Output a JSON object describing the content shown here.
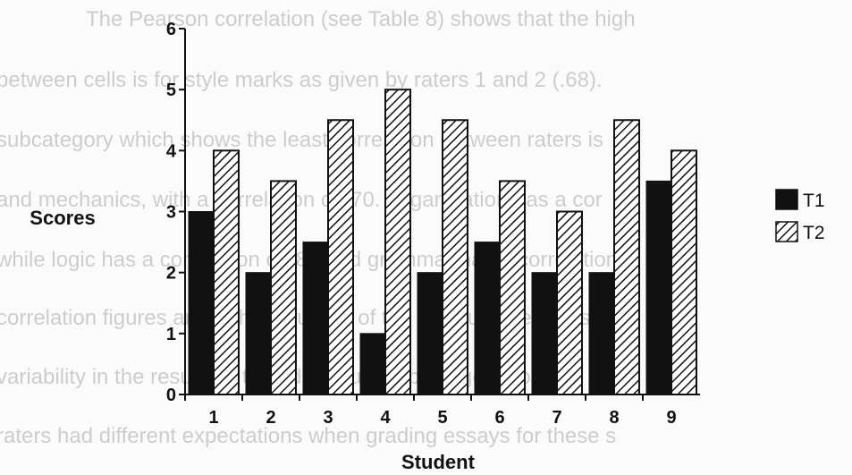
{
  "background_text": [
    "The Pearson correlation (see Table 8) shows that the high",
    "between cells is for style marks as given by raters 1 and 2 (.68).",
    "subcategory which shows the least correlation between raters is",
    "and mechanics, with a correlation of .70. Organization has a cor",
    "while logic has a correlation of .84 and grammar has a correlation",
    "correlation figures are high in four out of the five subcategories.",
    "variability in the results in the addendum subcategory could in",
    "raters had different expectations when grading essays for these s"
  ],
  "chart_data": {
    "type": "bar",
    "title": "",
    "xlabel": "Student",
    "ylabel": "Scores",
    "categories": [
      "1",
      "2",
      "3",
      "4",
      "5",
      "6",
      "7",
      "8",
      "9"
    ],
    "series": [
      {
        "name": "T1",
        "values": [
          3,
          2,
          2.5,
          1,
          2,
          2.5,
          2,
          2,
          3.5
        ],
        "fill": "solid",
        "color": "#111111"
      },
      {
        "name": "T2",
        "values": [
          4,
          3.5,
          4.5,
          5,
          4.5,
          3.5,
          3,
          4.5,
          4
        ],
        "fill": "hatched",
        "color": "#111111"
      }
    ],
    "ylim": [
      0,
      6
    ],
    "yticks": [
      "0",
      "1",
      "2",
      "3",
      "4",
      "5",
      "6"
    ],
    "grid": false,
    "legend_position": "right"
  }
}
